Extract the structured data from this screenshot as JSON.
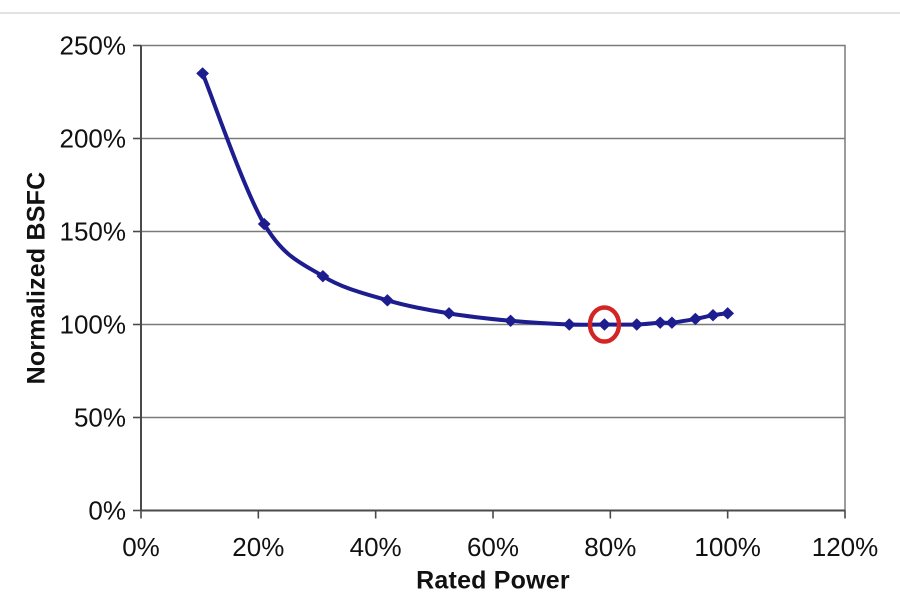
{
  "figure": {
    "background_color": "#ffffff",
    "top_edge_line_color": "#e2e2e2"
  },
  "chart_data": {
    "type": "line",
    "title": "",
    "xlabel": "Rated Power",
    "ylabel": "Normalized BSFC",
    "xlim": [
      0,
      120
    ],
    "ylim": [
      0,
      250
    ],
    "x_tick_values": [
      0,
      20,
      40,
      60,
      80,
      100,
      120
    ],
    "x_tick_labels": [
      "0%",
      "20%",
      "40%",
      "60%",
      "80%",
      "100%",
      "120%"
    ],
    "y_tick_values": [
      0,
      50,
      100,
      150,
      200,
      250
    ],
    "y_tick_labels": [
      "0%",
      "50%",
      "100%",
      "150%",
      "200%",
      "250%"
    ],
    "grid": "horizontal-only",
    "legend_position": "none",
    "series": [
      {
        "name": "Normalized BSFC",
        "line_color": "#1d1d8f",
        "marker": "diamond",
        "smooth": true,
        "x": [
          10.5,
          21,
          31,
          42,
          52.5,
          63,
          73,
          79,
          84.5,
          88.5,
          90.5,
          94.5,
          97.5,
          100
        ],
        "y": [
          235,
          154,
          126,
          113,
          106,
          102,
          100,
          100,
          100,
          101,
          101,
          103,
          105,
          106
        ]
      }
    ],
    "annotations": [
      {
        "type": "circle",
        "description": "red circle highlighting data point at 79% rated power, 100% BSFC",
        "x": 79,
        "y": 100,
        "color": "#d32525"
      }
    ],
    "styles": {
      "grid_color": "#7a7a7a",
      "axis_color": "#4a4a4a",
      "tick_color": "#4a4a4a",
      "tick_label_color": "#111111",
      "axis_title_color": "#111111"
    }
  }
}
